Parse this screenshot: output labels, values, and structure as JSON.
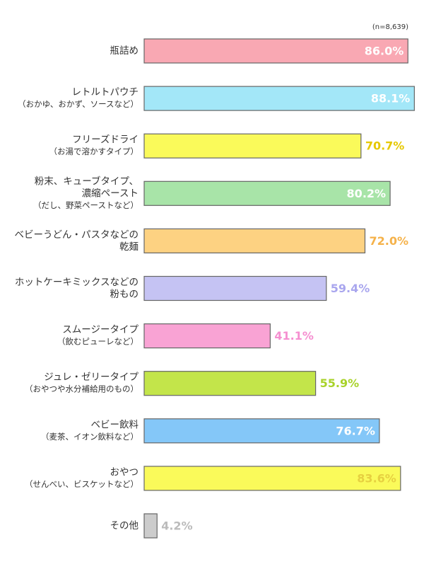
{
  "chart_data": {
    "type": "bar",
    "orientation": "horizontal",
    "annotation": "(n=8,639)",
    "categories": [
      [
        "瓶詰め"
      ],
      [
        "レトルトパウチ",
        "（おかゆ、おかず、ソースなど）"
      ],
      [
        "フリーズドライ",
        "（お湯で溶かすタイプ）"
      ],
      [
        "粉末、キューブタイプ、",
        "濃縮ペースト",
        "（だし、野菜ペーストなど）"
      ],
      [
        "ベビーうどん・パスタなどの",
        "乾麺"
      ],
      [
        "ホットケーキミックスなどの",
        "粉もの"
      ],
      [
        "スムージータイプ",
        "（飲むピューレなど）"
      ],
      [
        "ジュレ・ゼリータイプ",
        "（おやつや水分補給用のもの）"
      ],
      [
        "ベビー飲料",
        "（麦茶、イオン飲料など）"
      ],
      [
        "おやつ",
        "（せんべい、ビスケットなど）"
      ],
      [
        "その他"
      ]
    ],
    "values": [
      86.0,
      88.1,
      70.7,
      80.2,
      72.0,
      59.4,
      41.1,
      55.9,
      76.7,
      83.6,
      4.2
    ],
    "value_labels": [
      "86.0%",
      "88.1%",
      "70.7%",
      "80.2%",
      "72.0%",
      "59.4%",
      "41.1%",
      "55.9%",
      "76.7%",
      "83.6%",
      "4.2%"
    ],
    "colors": [
      "#f9a8b3",
      "#a3e7f8",
      "#fafa5a",
      "#a8e4a8",
      "#fdd282",
      "#c5c3f3",
      "#f9a3d4",
      "#c3e54a",
      "#84c7f8",
      "#fafa5a",
      "#cccccc"
    ],
    "label_colors": [
      "#ffffff",
      "#ffffff",
      "#e6c800",
      "#ffffff",
      "#f5b24a",
      "#a9a6ee",
      "#f58fd0",
      "#a8d22a",
      "#ffffff",
      "#e6d040",
      "#bbbbbb"
    ],
    "xlim": [
      0,
      100
    ]
  }
}
